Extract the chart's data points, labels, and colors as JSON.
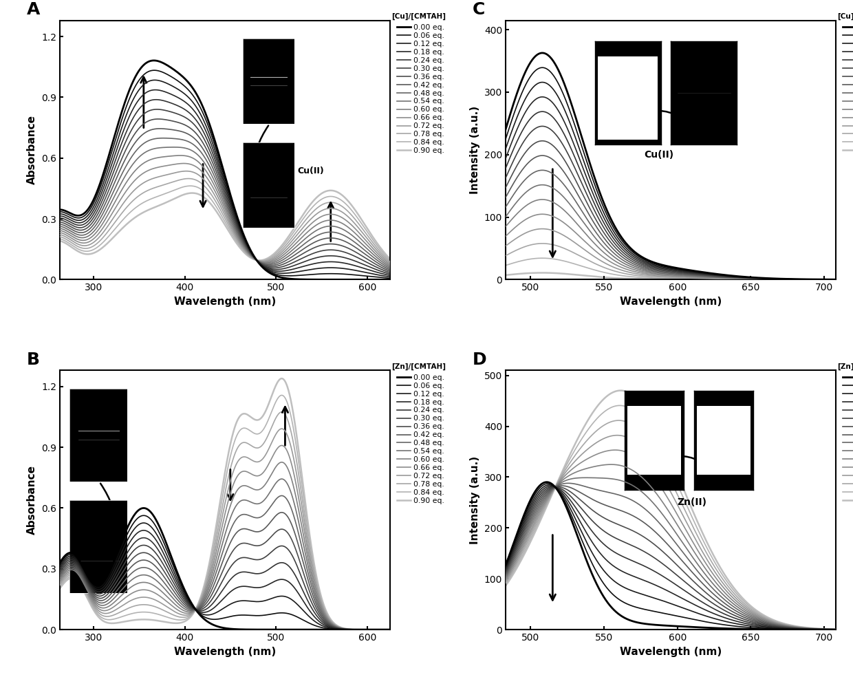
{
  "panel_labels": [
    "A",
    "B",
    "C",
    "D"
  ],
  "legend_labels": [
    "0.00 eq.",
    "0.06 eq.",
    "0.12 eq.",
    "0.18 eq.",
    "0.24 eq.",
    "0.30 eq.",
    "0.36 eq.",
    "0.42 eq.",
    "0.48 eq.",
    "0.54 eq.",
    "0.60 eq.",
    "0.66 eq.",
    "0.72 eq.",
    "0.78 eq.",
    "0.84 eq.",
    "0.90 eq."
  ],
  "n_curves": 16,
  "background_color": "#ffffff"
}
